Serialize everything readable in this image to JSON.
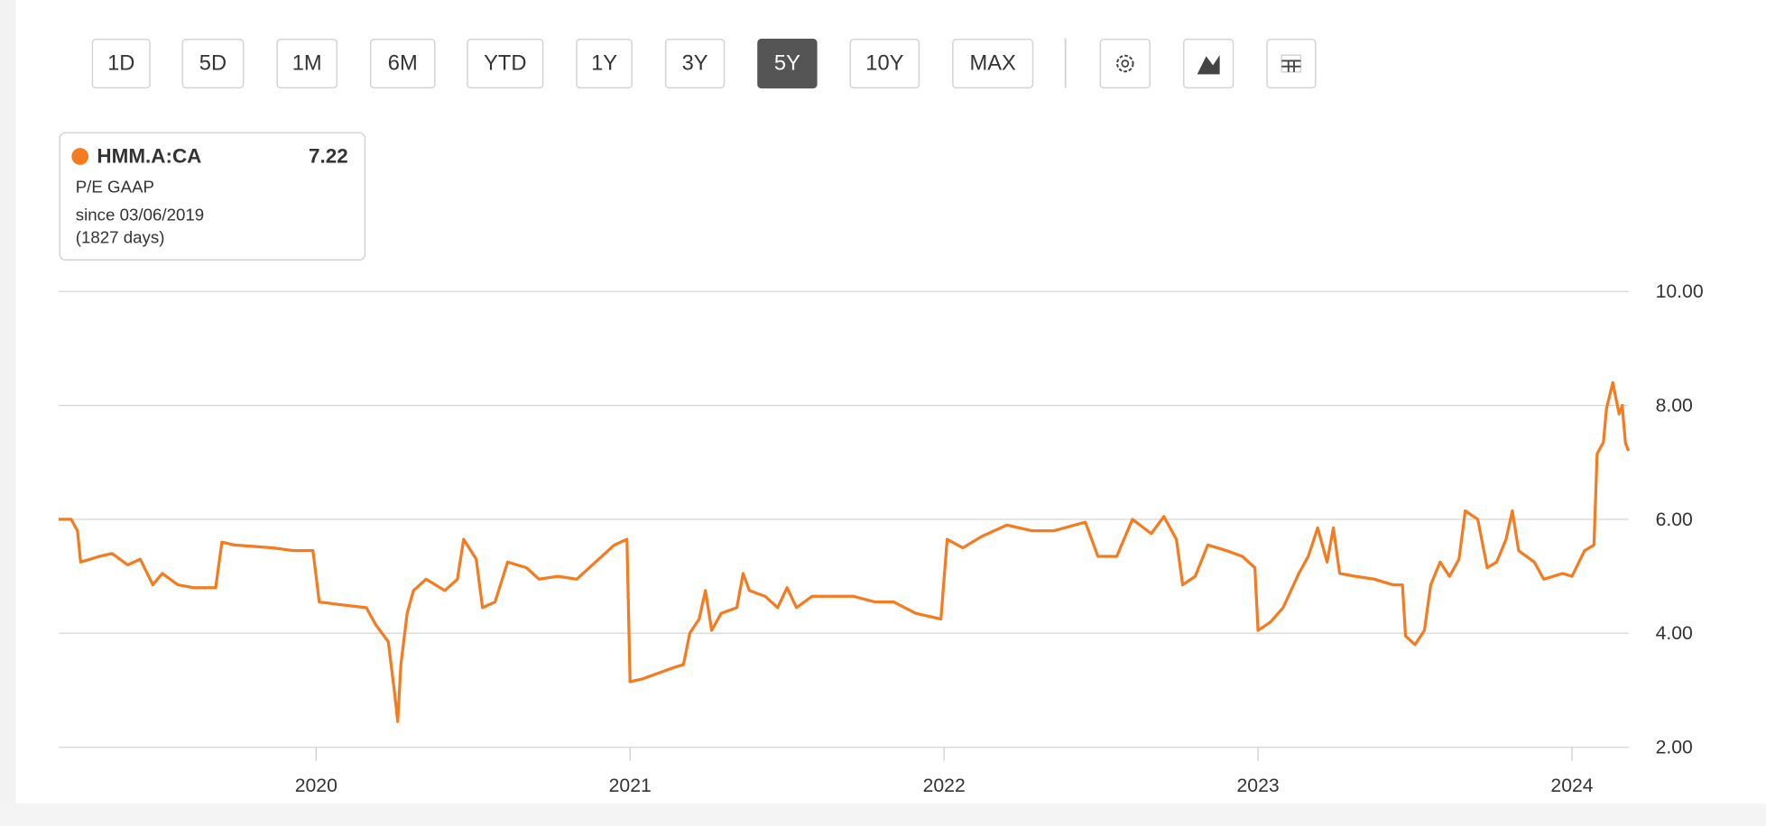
{
  "toolbar": {
    "buttons": [
      "1D",
      "5D",
      "1M",
      "6M",
      "YTD",
      "1Y",
      "3Y",
      "5Y",
      "10Y",
      "MAX"
    ],
    "active": "5Y"
  },
  "legend_box": {
    "metric": "P/E GAAP",
    "value": "7.22",
    "since": "since 03/06/2019",
    "days": "(1827 days)"
  },
  "chart_data": {
    "type": "line",
    "x": [
      2019.18,
      2019.22,
      2019.24,
      2019.25,
      2019.31,
      2019.35,
      2019.4,
      2019.44,
      2019.48,
      2019.51,
      2019.56,
      2019.61,
      2019.68,
      2019.7,
      2019.74,
      2019.86,
      2019.93,
      2019.99,
      2020.01,
      2020.08,
      2020.16,
      2020.19,
      2020.23,
      2020.25,
      2020.26,
      2020.27,
      2020.29,
      2020.31,
      2020.35,
      2020.41,
      2020.45,
      2020.47,
      2020.51,
      2020.53,
      2020.57,
      2020.61,
      2020.67,
      2020.71,
      2020.77,
      2020.83,
      2020.89,
      2020.95,
      2020.99,
      2021.0,
      2021.04,
      2021.09,
      2021.14,
      2021.17,
      2021.19,
      2021.22,
      2021.24,
      2021.26,
      2021.29,
      2021.34,
      2021.36,
      2021.38,
      2021.43,
      2021.47,
      2021.5,
      2021.53,
      2021.58,
      2021.64,
      2021.71,
      2021.78,
      2021.84,
      2021.91,
      2021.99,
      2022.01,
      2022.06,
      2022.12,
      2022.2,
      2022.28,
      2022.35,
      2022.45,
      2022.49,
      2022.55,
      2022.6,
      2022.66,
      2022.7,
      2022.74,
      2022.76,
      2022.8,
      2022.84,
      2022.9,
      2022.95,
      2022.99,
      2023.0,
      2023.04,
      2023.08,
      2023.13,
      2023.16,
      2023.19,
      2023.22,
      2023.24,
      2023.26,
      2023.31,
      2023.37,
      2023.43,
      2023.46,
      2023.47,
      2023.5,
      2023.53,
      2023.55,
      2023.58,
      2023.61,
      2023.64,
      2023.66,
      2023.7,
      2023.73,
      2023.76,
      2023.79,
      2023.81,
      2023.83,
      2023.88,
      2023.91,
      2023.97,
      2024.0,
      2024.04,
      2024.07,
      2024.08,
      2024.1,
      2024.11,
      2024.13,
      2024.15,
      2024.16,
      2024.17,
      2024.18
    ],
    "series": [
      {
        "name": "HMM.A:CA",
        "color": "#f57b20",
        "values": [
          6.0,
          6.0,
          5.8,
          5.25,
          5.35,
          5.4,
          5.2,
          5.3,
          4.85,
          5.05,
          4.85,
          4.8,
          4.8,
          5.6,
          5.55,
          5.5,
          5.45,
          5.45,
          4.55,
          4.5,
          4.45,
          4.15,
          3.85,
          2.95,
          2.45,
          3.45,
          4.35,
          4.75,
          4.95,
          4.75,
          4.95,
          5.65,
          5.3,
          4.45,
          4.55,
          5.25,
          5.15,
          4.95,
          5.0,
          4.95,
          5.25,
          5.55,
          5.65,
          3.15,
          3.2,
          3.3,
          3.4,
          3.45,
          4.0,
          4.25,
          4.75,
          4.05,
          4.35,
          4.45,
          5.05,
          4.75,
          4.65,
          4.45,
          4.8,
          4.45,
          4.65,
          4.65,
          4.65,
          4.55,
          4.55,
          4.35,
          4.25,
          5.65,
          5.5,
          5.7,
          5.9,
          5.8,
          5.8,
          5.95,
          5.35,
          5.35,
          6.0,
          5.75,
          6.05,
          5.65,
          4.85,
          5.0,
          5.55,
          5.45,
          5.35,
          5.15,
          4.05,
          4.2,
          4.45,
          5.05,
          5.35,
          5.85,
          5.25,
          5.85,
          5.05,
          5.0,
          4.95,
          4.85,
          4.85,
          3.95,
          3.8,
          4.05,
          4.85,
          5.25,
          5.0,
          5.3,
          6.15,
          6.0,
          5.15,
          5.25,
          5.65,
          6.15,
          5.45,
          5.25,
          4.95,
          5.05,
          5.0,
          5.45,
          5.55,
          7.15,
          7.35,
          7.95,
          8.4,
          7.85,
          8.0,
          7.35,
          7.2
        ]
      }
    ],
    "xlim": [
      2019.18,
      2024.18
    ],
    "xticks": [
      2020,
      2021,
      2022,
      2023,
      2024
    ],
    "ylim": [
      2,
      10
    ],
    "yticks": [
      {
        "value": 2,
        "label": "2.00"
      },
      {
        "value": 4,
        "label": "4.00"
      },
      {
        "value": 6,
        "label": "6.00"
      },
      {
        "value": 8,
        "label": "8.00"
      },
      {
        "value": 10,
        "label": "10.00"
      }
    ],
    "grid": true
  }
}
